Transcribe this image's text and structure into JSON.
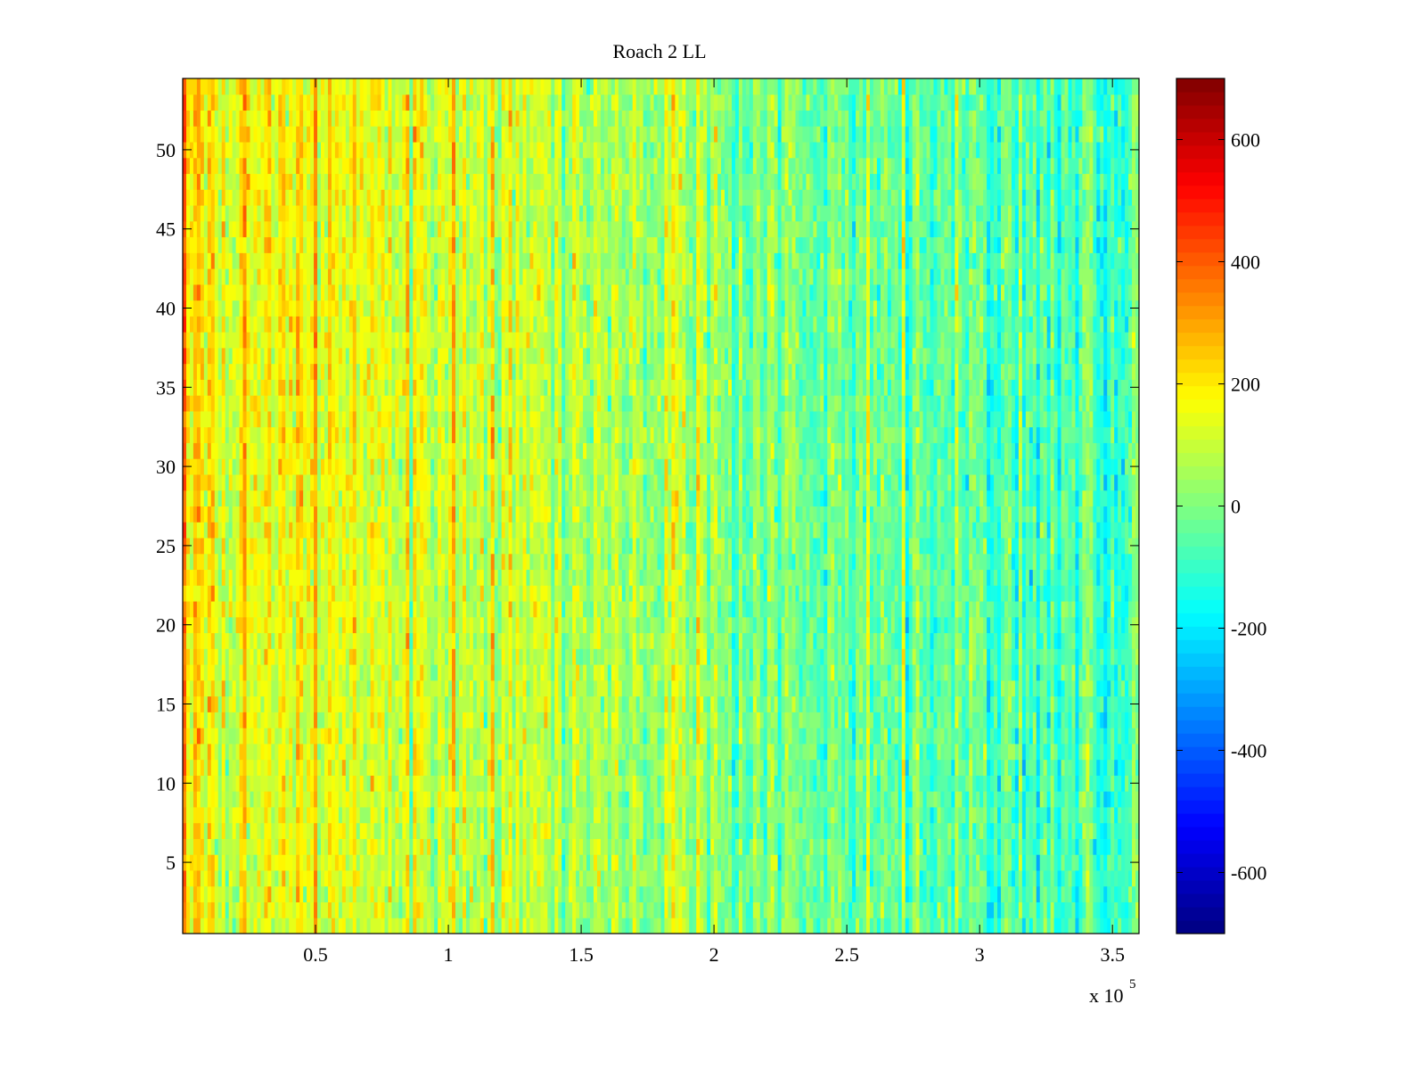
{
  "chart_data": {
    "type": "heatmap",
    "title": "Roach 2 LL",
    "xlabel": "",
    "ylabel": "",
    "x_multiplier_label": "x 10",
    "x_multiplier_exponent": "5",
    "xlim": [
      0,
      360000
    ],
    "ylim": [
      0.5,
      54.5
    ],
    "rows": 54,
    "x_ticks": [
      {
        "value": 50000,
        "label": "0.5"
      },
      {
        "value": 100000,
        "label": "1"
      },
      {
        "value": 150000,
        "label": "1.5"
      },
      {
        "value": 200000,
        "label": "2"
      },
      {
        "value": 250000,
        "label": "2.5"
      },
      {
        "value": 300000,
        "label": "3"
      },
      {
        "value": 350000,
        "label": "3.5"
      }
    ],
    "y_ticks": [
      {
        "value": 5,
        "label": "5"
      },
      {
        "value": 10,
        "label": "10"
      },
      {
        "value": 15,
        "label": "15"
      },
      {
        "value": 20,
        "label": "20"
      },
      {
        "value": 25,
        "label": "25"
      },
      {
        "value": 30,
        "label": "30"
      },
      {
        "value": 35,
        "label": "35"
      },
      {
        "value": 40,
        "label": "40"
      },
      {
        "value": 45,
        "label": "45"
      },
      {
        "value": 50,
        "label": "50"
      }
    ],
    "colormap": "jet",
    "clim": [
      -700,
      700
    ],
    "colorbar_ticks": [
      {
        "value": 600,
        "label": "600"
      },
      {
        "value": 400,
        "label": "400"
      },
      {
        "value": 200,
        "label": "200"
      },
      {
        "value": 0,
        "label": "0"
      },
      {
        "value": -200,
        "label": "-200"
      },
      {
        "value": -400,
        "label": "-400"
      },
      {
        "value": -600,
        "label": "-600"
      }
    ],
    "value_model": {
      "columns": 270,
      "mean_at_x_start": 170,
      "mean_at_x_end": -110,
      "upper_rows_extra_at_left": 60,
      "noise_std": 85,
      "seed": 7
    },
    "grid": false
  }
}
